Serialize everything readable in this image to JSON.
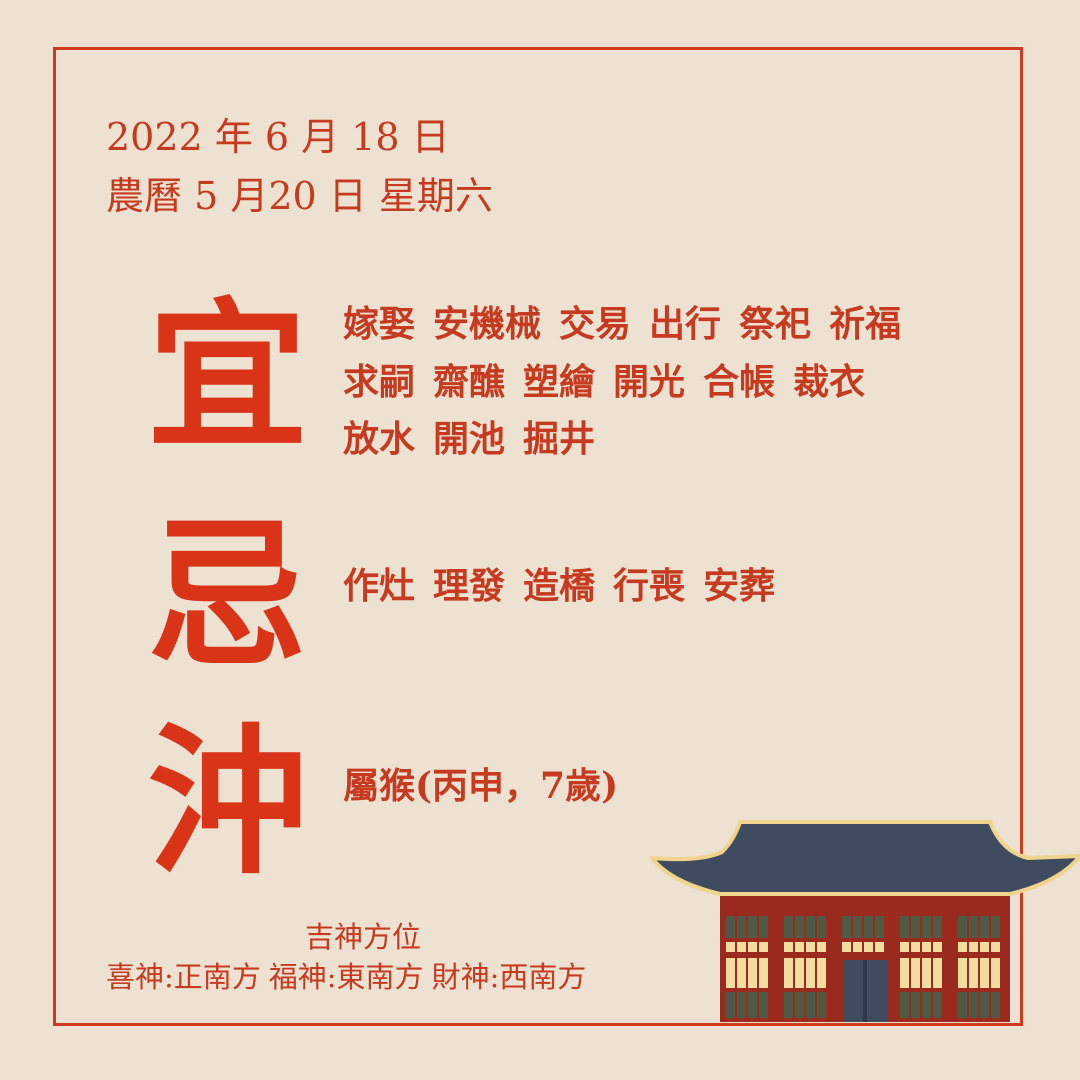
{
  "header": {
    "solar_date": "2022 年 6 月 18 日",
    "lunar_date": "農曆 5 月20 日 星期六"
  },
  "yi": {
    "char": "宜",
    "rows": [
      [
        "嫁娶",
        "安機械",
        "交易",
        "出行",
        "祭祀",
        "祈福"
      ],
      [
        "求嗣",
        "齋醮",
        "塑繪",
        "開光",
        "合帳",
        "裁衣"
      ],
      [
        "放水",
        "開池",
        "掘井"
      ]
    ]
  },
  "ji": {
    "char": "忌",
    "items": [
      "作灶",
      "理發",
      "造橋",
      "行喪",
      "安葬"
    ]
  },
  "chong": {
    "char": "沖",
    "text": "屬猴(丙申，7歲)"
  },
  "gods": {
    "title": "吉神方位",
    "items": [
      "喜神:正南方",
      "福神:東南方",
      "財神:西南方"
    ]
  },
  "colors": {
    "accent_red": "#d23a20",
    "background": "#ede1d2",
    "roof": "#3f4b5e",
    "roof_trim": "#f0d48d",
    "wall": "#9a2a1e",
    "window_green": "#4e5a44",
    "window_cream": "#f3dca0"
  },
  "illustration": {
    "icon": "temple-building-icon"
  }
}
